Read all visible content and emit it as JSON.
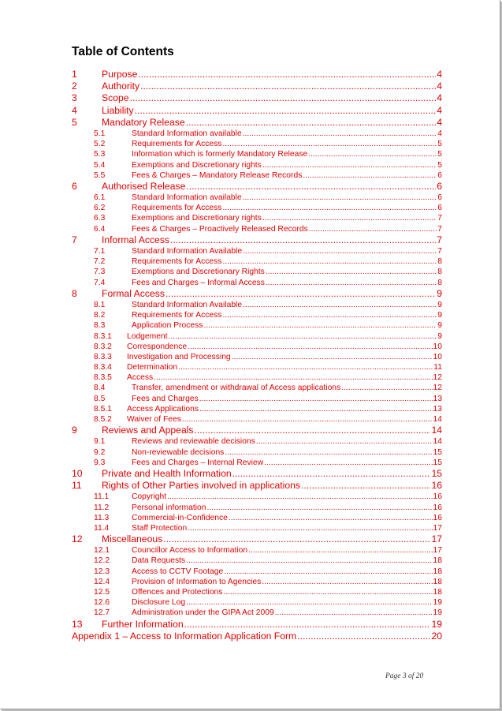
{
  "title": "Table of Contents",
  "entries": [
    {
      "level": 1,
      "num": "1",
      "text": "Purpose",
      "page": "4"
    },
    {
      "level": 1,
      "num": "2",
      "text": "Authority",
      "page": "4"
    },
    {
      "level": 1,
      "num": "3",
      "text": "Scope",
      "page": "4"
    },
    {
      "level": 1,
      "num": "4",
      "text": "Liability",
      "page": "4"
    },
    {
      "level": 1,
      "num": "5",
      "text": "Mandatory Release",
      "page": "4"
    },
    {
      "level": 2,
      "num": "5.1",
      "text": "Standard Information available",
      "page": "4"
    },
    {
      "level": 2,
      "num": "5.2",
      "text": "Requirements for Access",
      "page": "5"
    },
    {
      "level": 2,
      "num": "5.3",
      "text": "Information which is formerly Mandatory Release",
      "page": "5"
    },
    {
      "level": 2,
      "num": "5.4",
      "text": "Exemptions and Discretionary rights",
      "page": "5"
    },
    {
      "level": 2,
      "num": "5.5",
      "text": "Fees & Charges – Mandatory Release Records",
      "page": "6"
    },
    {
      "level": 1,
      "num": "6",
      "text": "Authorised Release",
      "page": "6"
    },
    {
      "level": 2,
      "num": "6.1",
      "text": "Standard Information available",
      "page": "6"
    },
    {
      "level": 2,
      "num": "6.2",
      "text": "Requirements for Access",
      "page": "6"
    },
    {
      "level": 2,
      "num": "6.3",
      "text": "Exemptions and Discretionary rights",
      "page": "7"
    },
    {
      "level": 2,
      "num": "6.4",
      "text": "Fees & Charges – Proactively Released Records",
      "page": "7"
    },
    {
      "level": 1,
      "num": "7",
      "text": "Informal Access",
      "page": "7"
    },
    {
      "level": 2,
      "num": "7.1",
      "text": "Standard Information Available",
      "page": "7"
    },
    {
      "level": 2,
      "num": "7.2",
      "text": "Requirements for Access",
      "page": "8"
    },
    {
      "level": 2,
      "num": "7.3",
      "text": "Exemptions and Discretionary Rights",
      "page": "8"
    },
    {
      "level": 2,
      "num": "7.4",
      "text": "Fees and Charges – Informal Access",
      "page": "8"
    },
    {
      "level": 1,
      "num": "8",
      "text": "Formal Access",
      "page": "9"
    },
    {
      "level": 2,
      "num": "8.1",
      "text": "Standard Information Available",
      "page": "9"
    },
    {
      "level": 2,
      "num": "8.2",
      "text": "Requirements for Access",
      "page": "9"
    },
    {
      "level": 2,
      "num": "8.3",
      "text": "Application Process",
      "page": "9"
    },
    {
      "level": 3,
      "num": "8.3.1",
      "text": "Lodgement",
      "page": "9"
    },
    {
      "level": 3,
      "num": "8.3.2",
      "text": "Correspondence",
      "page": "10"
    },
    {
      "level": 3,
      "num": "8.3.3",
      "text": "Investigation and Processing",
      "page": "10"
    },
    {
      "level": 3,
      "num": "8.3.4",
      "text": "Determination",
      "page": "11"
    },
    {
      "level": 3,
      "num": "8.3.5",
      "text": "Access",
      "page": "12"
    },
    {
      "level": 2,
      "num": "8.4",
      "text": "Transfer, amendment or withdrawal of Access applications",
      "page": "12"
    },
    {
      "level": 2,
      "num": "8.5",
      "text": "Fees and Charges",
      "page": "13"
    },
    {
      "level": 3,
      "num": "8.5.1",
      "text": "Access Applications",
      "page": "13"
    },
    {
      "level": 3,
      "num": "8.5.2",
      "text": "Waiver of Fees",
      "page": "14"
    },
    {
      "level": 1,
      "num": "9",
      "text": "Reviews and Appeals",
      "page": "14"
    },
    {
      "level": 2,
      "num": "9.1",
      "text": "Reviews and reviewable decisions",
      "page": "14"
    },
    {
      "level": 2,
      "num": "9.2",
      "text": "Non-reviewable decisions",
      "page": "15"
    },
    {
      "level": 2,
      "num": "9.3",
      "text": "Fees and Charges – Internal Review",
      "page": "15"
    },
    {
      "level": 1,
      "num": "10",
      "text": "Private and Health Information",
      "page": "15"
    },
    {
      "level": 1,
      "num": "11",
      "text": "Rights of Other Parties involved in applications",
      "page": "16"
    },
    {
      "level": 2,
      "num": "11.1",
      "text": "Copyright",
      "page": "16"
    },
    {
      "level": 2,
      "num": "11.2",
      "text": "Personal information",
      "page": "16"
    },
    {
      "level": 2,
      "num": "11.3",
      "text": "Commercial-in-Confidence",
      "page": "16"
    },
    {
      "level": 2,
      "num": "11.4",
      "text": "Staff Protection",
      "page": "17"
    },
    {
      "level": 1,
      "num": "12",
      "text": "Miscellaneous",
      "page": "17"
    },
    {
      "level": 2,
      "num": "12.1",
      "text": "Councillor Access to Information",
      "page": "17"
    },
    {
      "level": 2,
      "num": "12.2",
      "text": "Data Requests",
      "page": "18"
    },
    {
      "level": 2,
      "num": "12.3",
      "text": "Access to CCTV Footage",
      "page": "18"
    },
    {
      "level": 2,
      "num": "12.4",
      "text": "Provision of Information to Agencies",
      "page": "18"
    },
    {
      "level": 2,
      "num": "12.5",
      "text": "Offences and Protections",
      "page": "18"
    },
    {
      "level": 2,
      "num": "12.6",
      "text": "Disclosure Log",
      "page": "19"
    },
    {
      "level": 2,
      "num": "12.7",
      "text": "Administration under the GIPA Act 2009",
      "page": "19"
    },
    {
      "level": 1,
      "num": "13",
      "text": "Further Information",
      "page": "19"
    },
    {
      "level": 0,
      "num": "",
      "text": "Appendix 1 – Access to Information Application Form",
      "page": "20"
    }
  ],
  "footer": "Page 3 of 20",
  "colors": {
    "link": "#e00000"
  }
}
